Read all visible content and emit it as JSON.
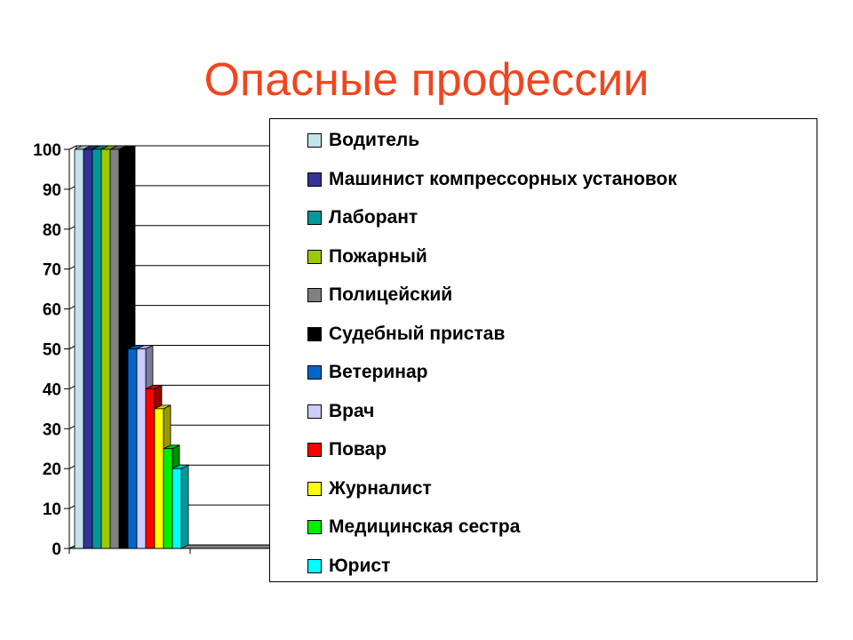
{
  "chart_data": {
    "type": "bar",
    "title": "Опасные профессии",
    "xlabel": "",
    "ylabel": "",
    "ylim": [
      0,
      100
    ],
    "yticks": [
      "0",
      "10",
      "20",
      "30",
      "40",
      "50",
      "60",
      "70",
      "80",
      "90",
      "100"
    ],
    "grid": true,
    "legend_position": "right",
    "series": [
      {
        "name": "Водитель",
        "value": 100,
        "color": "#c4e4ec"
      },
      {
        "name": "Машинист компрессорных установок",
        "value": 100,
        "color": "#333399"
      },
      {
        "name": "Лаборант",
        "value": 100,
        "color": "#009999"
      },
      {
        "name": "Пожарный",
        "value": 100,
        "color": "#99cc00"
      },
      {
        "name": "Полицейский",
        "value": 100,
        "color": "#808080"
      },
      {
        "name": "Судебный пристав",
        "value": 100,
        "color": "#000000"
      },
      {
        "name": "Ветеринар",
        "value": 50,
        "color": "#0066cc"
      },
      {
        "name": "Врач",
        "value": 50,
        "color": "#ccccff"
      },
      {
        "name": "Повар",
        "value": 40,
        "color": "#ff0000"
      },
      {
        "name": "Журналист",
        "value": 35,
        "color": "#ffff00"
      },
      {
        "name": "Медицинская сестра",
        "value": 25,
        "color": "#00ee00"
      },
      {
        "name": "Юрист",
        "value": 20,
        "color": "#00ffff"
      }
    ]
  }
}
